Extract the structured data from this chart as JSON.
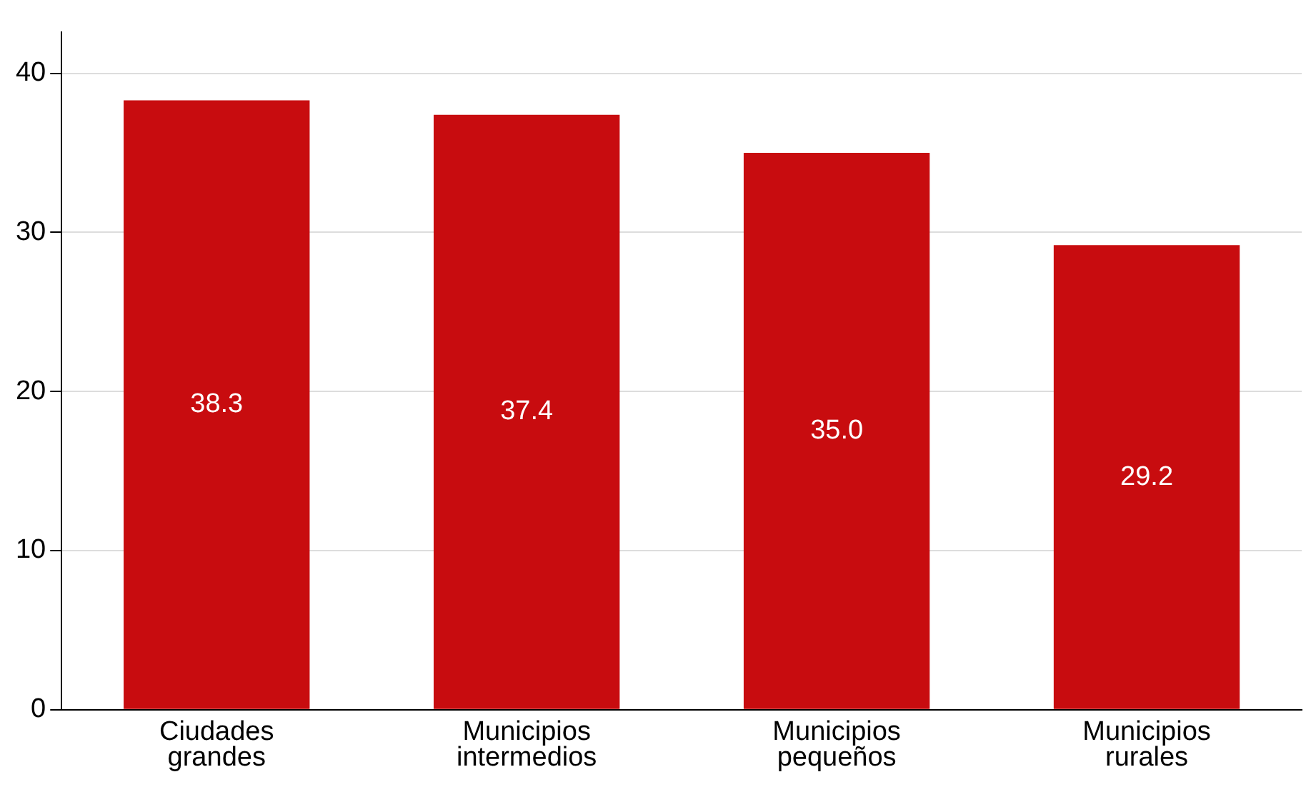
{
  "chart_data": {
    "type": "bar",
    "categories": [
      "Ciudades grandes",
      "Municipios intermedios",
      "Municipios pequeños",
      "Municipios rurales"
    ],
    "values": [
      38.3,
      37.4,
      35.0,
      29.2
    ],
    "color": "#c80c0f",
    "ylim": [
      0,
      42.6
    ],
    "yticks": [
      0,
      10,
      20,
      30,
      40
    ],
    "value_labels": [
      "38.3",
      "37.4",
      "35.0",
      "29.2"
    ],
    "grid": "y"
  }
}
